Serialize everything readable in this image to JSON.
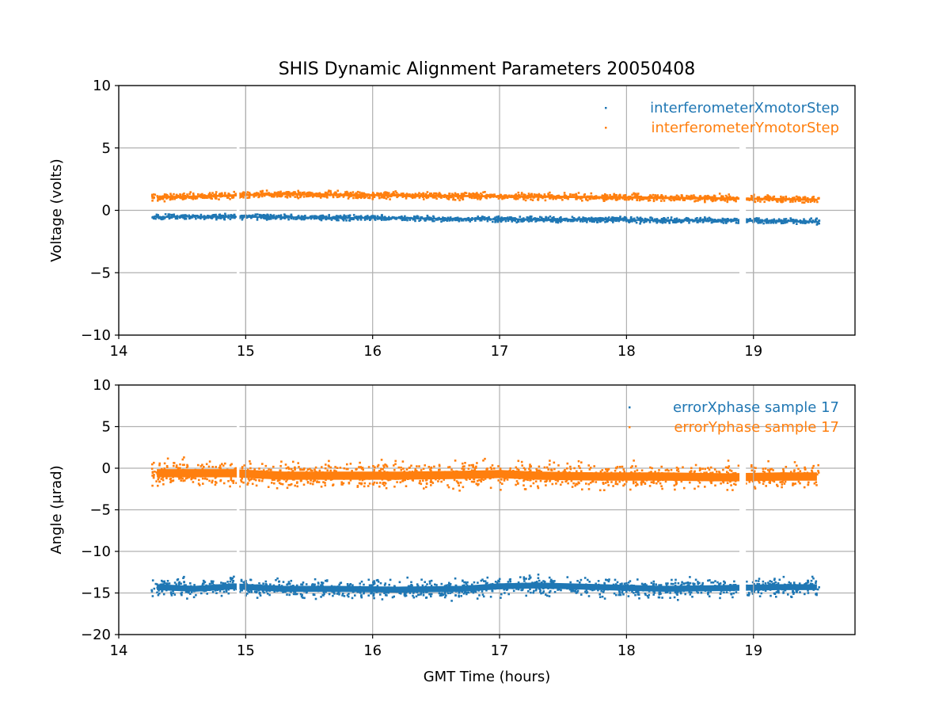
{
  "title": "SHIS Dynamic Alignment Parameters 20050408",
  "colors": {
    "series1": "#1f77b4",
    "series2": "#ff7f0e",
    "grid": "#b0b0b0",
    "axis": "#000000"
  },
  "chart_data": [
    {
      "type": "scatter",
      "xlabel": "",
      "ylabel": "Voltage (volts)",
      "xlim": [
        14,
        19.8
      ],
      "ylim": [
        -10,
        10
      ],
      "xticks": [
        14,
        15,
        16,
        17,
        18,
        19
      ],
      "yticks": [
        -10,
        -5,
        0,
        5,
        10
      ],
      "xtick_labels": [
        "14",
        "15",
        "16",
        "17",
        "18",
        "19"
      ],
      "ytick_labels": [
        "−10",
        "−5",
        "0",
        "5",
        "10"
      ],
      "grid": true,
      "legend_position": "top-right",
      "x_range": [
        14.26,
        19.52
      ],
      "gaps": [
        [
          14.93,
          14.95
        ],
        [
          18.89,
          18.94
        ]
      ],
      "series": [
        {
          "name": "interferometerXmotorStep",
          "x": [
            14.3,
            14.6,
            14.9,
            15.3,
            15.7,
            16.2,
            16.7,
            17.3,
            17.8,
            18.3,
            18.8,
            19.2,
            19.5
          ],
          "y": [
            -0.55,
            -0.5,
            -0.52,
            -0.55,
            -0.6,
            -0.62,
            -0.7,
            -0.72,
            -0.75,
            -0.8,
            -0.8,
            -0.85,
            -0.9
          ],
          "band": 0.15
        },
        {
          "name": "interferometerYmotorStep",
          "x": [
            14.3,
            14.6,
            14.9,
            15.3,
            15.7,
            16.2,
            16.7,
            17.3,
            17.8,
            18.3,
            18.8,
            19.2,
            19.5
          ],
          "y": [
            1.05,
            1.1,
            1.2,
            1.3,
            1.25,
            1.2,
            1.15,
            1.1,
            1.05,
            1.0,
            0.95,
            0.9,
            0.85
          ],
          "band": 0.2
        }
      ]
    },
    {
      "type": "scatter",
      "xlabel": "GMT Time (hours)",
      "ylabel": "Angle (μrad)",
      "xlim": [
        14,
        19.8
      ],
      "ylim": [
        -20,
        10
      ],
      "xticks": [
        14,
        15,
        16,
        17,
        18,
        19
      ],
      "yticks": [
        -20,
        -15,
        -10,
        -5,
        0,
        5,
        10
      ],
      "xtick_labels": [
        "14",
        "15",
        "16",
        "17",
        "18",
        "19"
      ],
      "ytick_labels": [
        "−20",
        "−15",
        "−10",
        "−5",
        "0",
        "5",
        "10"
      ],
      "grid": true,
      "legend_position": "top-right",
      "x_range": [
        14.26,
        19.52
      ],
      "gaps": [
        [
          14.93,
          14.95
        ],
        [
          18.89,
          18.94
        ]
      ],
      "series": [
        {
          "name": "errorXphase sample 17",
          "x": [
            14.3,
            14.6,
            14.9,
            15.3,
            15.7,
            16.2,
            16.7,
            17.0,
            17.3,
            17.8,
            18.3,
            18.8,
            19.2,
            19.5
          ],
          "y": [
            -14.3,
            -14.5,
            -14.2,
            -14.5,
            -14.5,
            -14.6,
            -14.5,
            -14.2,
            -14.1,
            -14.3,
            -14.5,
            -14.4,
            -14.3,
            -14.3
          ],
          "band": 0.8
        },
        {
          "name": "errorYphase sample 17",
          "x": [
            14.3,
            14.6,
            14.9,
            15.3,
            15.7,
            16.2,
            16.7,
            17.0,
            17.3,
            17.8,
            18.3,
            18.8,
            19.2,
            19.5
          ],
          "y": [
            -0.6,
            -0.6,
            -0.6,
            -0.9,
            -0.9,
            -0.9,
            -0.8,
            -0.7,
            -0.9,
            -1.0,
            -1.0,
            -1.1,
            -1.0,
            -1.0
          ],
          "band": 1.1
        }
      ]
    }
  ]
}
